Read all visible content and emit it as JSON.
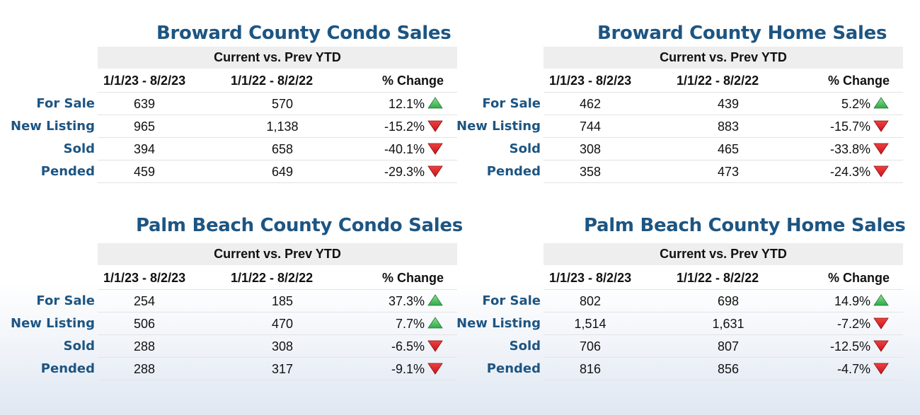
{
  "colors": {
    "title": "#1d5582",
    "up": "#2ea84a",
    "down": "#c8141b",
    "header_bg": "#eeeeee"
  },
  "header": "Current vs. Prev YTD",
  "columns": [
    "1/1/23 - 8/2/23",
    "1/1/22 - 8/2/22",
    "% Change"
  ],
  "panels": [
    {
      "title": "Broward County Condo Sales",
      "rows": [
        {
          "label": "For Sale",
          "cur": "639",
          "prev": "570",
          "pct": "12.1%",
          "dir": "up",
          "icon": "up-arrow-icon"
        },
        {
          "label": "New Listing",
          "cur": "965",
          "prev": "1,138",
          "pct": "-15.2%",
          "dir": "down",
          "icon": "down-arrow-icon"
        },
        {
          "label": "Sold",
          "cur": "394",
          "prev": "658",
          "pct": "-40.1%",
          "dir": "down",
          "icon": "down-arrow-icon"
        },
        {
          "label": "Pended",
          "cur": "459",
          "prev": "649",
          "pct": "-29.3%",
          "dir": "down",
          "icon": "down-arrow-icon"
        }
      ]
    },
    {
      "title": "Broward County Home Sales",
      "rows": [
        {
          "label": "For Sale",
          "cur": "462",
          "prev": "439",
          "pct": "5.2%",
          "dir": "up",
          "icon": "up-arrow-icon"
        },
        {
          "label": "New Listing",
          "cur": "744",
          "prev": "883",
          "pct": "-15.7%",
          "dir": "down",
          "icon": "down-arrow-icon"
        },
        {
          "label": "Sold",
          "cur": "308",
          "prev": "465",
          "pct": "-33.8%",
          "dir": "down",
          "icon": "down-arrow-icon"
        },
        {
          "label": "Pended",
          "cur": "358",
          "prev": "473",
          "pct": "-24.3%",
          "dir": "down",
          "icon": "down-arrow-icon"
        }
      ]
    },
    {
      "title": "Palm Beach County Condo Sales",
      "rows": [
        {
          "label": "For Sale",
          "cur": "254",
          "prev": "185",
          "pct": "37.3%",
          "dir": "up",
          "icon": "up-arrow-icon"
        },
        {
          "label": "New Listing",
          "cur": "506",
          "prev": "470",
          "pct": "7.7%",
          "dir": "up",
          "icon": "up-arrow-icon"
        },
        {
          "label": "Sold",
          "cur": "288",
          "prev": "308",
          "pct": "-6.5%",
          "dir": "down",
          "icon": "down-arrow-icon"
        },
        {
          "label": "Pended",
          "cur": "288",
          "prev": "317",
          "pct": "-9.1%",
          "dir": "down",
          "icon": "down-arrow-icon"
        }
      ]
    },
    {
      "title": "Palm Beach County Home Sales",
      "rows": [
        {
          "label": "For Sale",
          "cur": "802",
          "prev": "698",
          "pct": "14.9%",
          "dir": "up",
          "icon": "up-arrow-icon"
        },
        {
          "label": "New Listing",
          "cur": "1,514",
          "prev": "1,631",
          "pct": "-7.2%",
          "dir": "down",
          "icon": "down-arrow-icon"
        },
        {
          "label": "Sold",
          "cur": "706",
          "prev": "807",
          "pct": "-12.5%",
          "dir": "down",
          "icon": "down-arrow-icon"
        },
        {
          "label": "Pended",
          "cur": "816",
          "prev": "856",
          "pct": "-4.7%",
          "dir": "down",
          "icon": "down-arrow-icon"
        }
      ]
    }
  ]
}
